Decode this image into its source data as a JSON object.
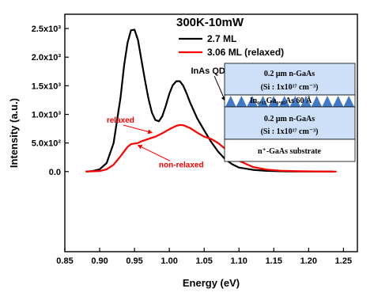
{
  "chart_data": {
    "type": "line",
    "title": "300K-10mW",
    "xlabel": "Energy (eV)",
    "ylabel": "Intensity (a.u.)",
    "xlim": [
      0.85,
      1.27
    ],
    "ylim": [
      -1400.0,
      2750.0
    ],
    "x_ticks": [
      0.85,
      0.9,
      0.95,
      1.0,
      1.05,
      1.1,
      1.15,
      1.2,
      1.25
    ],
    "x_tick_labels": [
      "0.85",
      "0.90",
      "0.95",
      "1.00",
      "1.05",
      "1.10",
      "1.15",
      "1.20",
      "1.25"
    ],
    "y_ticks": [
      0,
      500,
      1000,
      1500,
      2000,
      2500
    ],
    "y_tick_labels": [
      "0.0",
      "5.0x10²",
      "1.0x10³",
      "1.5x10³",
      "2.0x10³",
      "2.5x10³"
    ],
    "legend_position": "top-right",
    "series": [
      {
        "name": "2.7 ML",
        "color": "#000000",
        "x": [
          0.88,
          0.89,
          0.9,
          0.91,
          0.92,
          0.93,
          0.935,
          0.94,
          0.945,
          0.95,
          0.955,
          0.96,
          0.965,
          0.97,
          0.975,
          0.98,
          0.985,
          0.99,
          0.995,
          1.0,
          1.005,
          1.01,
          1.015,
          1.02,
          1.025,
          1.03,
          1.04,
          1.05,
          1.06,
          1.07,
          1.08,
          1.09,
          1.1,
          1.12,
          1.14,
          1.16,
          1.18,
          1.2,
          1.22,
          1.235
        ],
        "y": [
          0,
          10,
          40,
          150,
          500,
          1300,
          1850,
          2250,
          2470,
          2480,
          2300,
          1950,
          1600,
          1280,
          1030,
          900,
          880,
          970,
          1150,
          1360,
          1510,
          1580,
          1580,
          1500,
          1360,
          1200,
          930,
          720,
          520,
          350,
          220,
          130,
          70,
          30,
          12,
          6,
          3,
          2,
          1,
          0
        ]
      },
      {
        "name": "3.06 ML (relaxed)",
        "color": "#ff0000",
        "x": [
          0.88,
          0.9,
          0.91,
          0.92,
          0.93,
          0.94,
          0.945,
          0.95,
          0.955,
          0.96,
          0.97,
          0.98,
          0.99,
          1.0,
          1.01,
          1.015,
          1.02,
          1.03,
          1.04,
          1.05,
          1.06,
          1.07,
          1.08,
          1.09,
          1.1,
          1.12,
          1.14,
          1.16,
          1.18,
          1.2,
          1.22,
          1.24
        ],
        "y": [
          0,
          10,
          40,
          120,
          270,
          430,
          480,
          490,
          500,
          530,
          570,
          610,
          670,
          740,
          800,
          815,
          810,
          760,
          680,
          610,
          570,
          500,
          400,
          290,
          190,
          80,
          35,
          15,
          8,
          4,
          2,
          0
        ]
      }
    ],
    "annotations": [
      {
        "text": "relaxed",
        "color": "#ff0000",
        "at": [
          0.91,
          855
        ],
        "arrow_to": [
          0.975,
          680
        ]
      },
      {
        "text": "non-relaxed",
        "color": "#ff0000",
        "at": [
          0.985,
          75
        ],
        "arrow_to": [
          0.955,
          460
        ]
      },
      {
        "text": "InAs QDs",
        "color": "#000000",
        "at": [
          1.031,
          1710
        ],
        "arrow_to": [
          1.08,
          1240
        ]
      }
    ],
    "inset": {
      "layers": {
        "top_line1": "0.2 μm n-GaAs",
        "top_line2": "(Si : 1x10¹⁷ cm⁻³)",
        "qd_layer": "In₀.₁₅Ga₀.₈₅As 60 Å",
        "bottom_line1": "0.2 μm n-GaAs",
        "bottom_line2": "(Si : 1x10¹⁷ cm⁻³)",
        "substrate": "n⁺-GaAs substrate"
      },
      "colors": {
        "layer": "#cde0f7",
        "dots": "#3f79c8"
      }
    }
  }
}
